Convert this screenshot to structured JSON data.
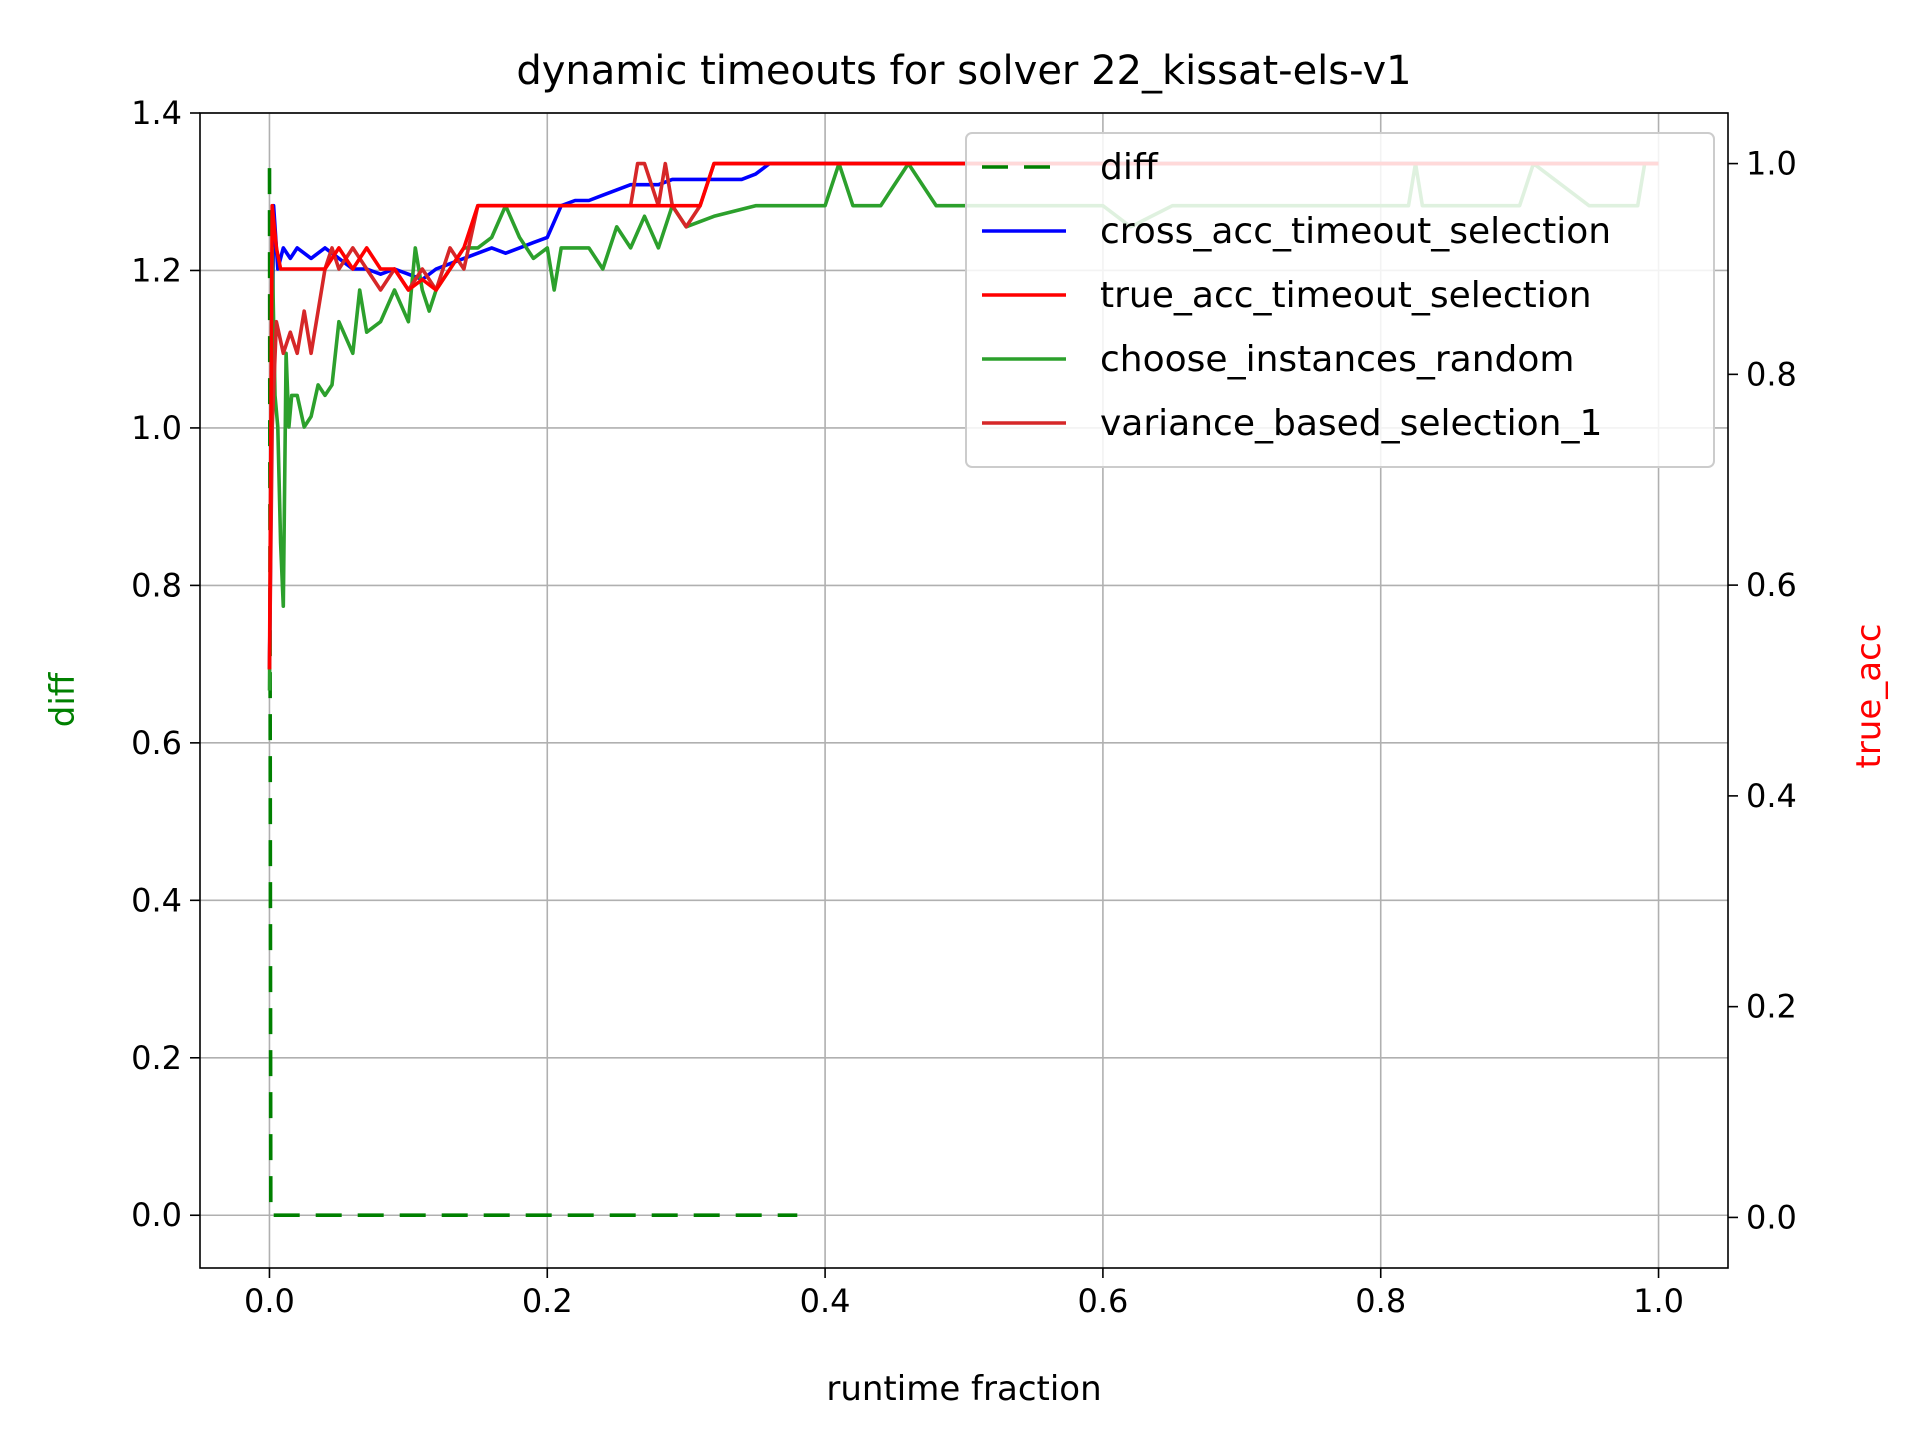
{
  "chart_data": {
    "type": "line",
    "title": "dynamic timeouts for solver 22_kissat-els-v1",
    "xlabel": "runtime fraction",
    "ylabel_left": "diff",
    "ylabel_right": "true_acc",
    "xlim": [
      -0.05,
      1.05
    ],
    "ylim_left": [
      -0.067,
      1.4
    ],
    "ylim_right": [
      -0.048,
      1.048
    ],
    "x_ticks": [
      "0.0",
      "0.2",
      "0.4",
      "0.6",
      "0.8",
      "1.0"
    ],
    "y_ticks_left": [
      "0.0",
      "0.2",
      "0.4",
      "0.6",
      "0.8",
      "1.0",
      "1.2",
      "1.4"
    ],
    "y_ticks_right": [
      "0.0",
      "0.2",
      "0.4",
      "0.6",
      "0.8",
      "1.0"
    ],
    "grid": true,
    "legend_position": "top-right",
    "colors": {
      "axis_label_left": "#008000",
      "axis_label_right": "#ff0000"
    },
    "series": [
      {
        "name": "diff",
        "axis": "left",
        "color": "#008000",
        "style": "dashed",
        "x": [
          0.0,
          0.001,
          0.003,
          0.05,
          0.1,
          0.15,
          0.2,
          0.25,
          0.3,
          0.33,
          0.36,
          0.38
        ],
        "values": [
          1.33,
          0.0,
          0.0,
          0.0,
          0.0,
          0.0,
          0.0,
          0.0,
          0.0,
          0.0,
          0.0,
          0.0
        ]
      },
      {
        "name": "cross_acc_timeout_selection",
        "axis": "right",
        "color": "#0000ff",
        "style": "solid",
        "x": [
          0.0,
          0.003,
          0.006,
          0.01,
          0.015,
          0.02,
          0.03,
          0.04,
          0.05,
          0.06,
          0.07,
          0.08,
          0.09,
          0.1,
          0.11,
          0.12,
          0.13,
          0.14,
          0.15,
          0.16,
          0.17,
          0.18,
          0.19,
          0.2,
          0.21,
          0.22,
          0.23,
          0.24,
          0.25,
          0.26,
          0.27,
          0.28,
          0.29,
          0.3,
          0.31,
          0.32,
          0.33,
          0.34,
          0.35,
          0.36,
          0.37,
          0.38,
          0.39,
          0.4,
          0.45,
          0.5,
          0.6,
          0.7,
          0.8,
          0.9,
          1.0
        ],
        "values": [
          0.52,
          0.96,
          0.9,
          0.92,
          0.91,
          0.92,
          0.91,
          0.92,
          0.91,
          0.9,
          0.9,
          0.895,
          0.9,
          0.895,
          0.89,
          0.9,
          0.905,
          0.91,
          0.915,
          0.92,
          0.915,
          0.92,
          0.925,
          0.93,
          0.96,
          0.965,
          0.965,
          0.97,
          0.975,
          0.98,
          0.98,
          0.98,
          0.985,
          0.985,
          0.985,
          0.985,
          0.985,
          0.985,
          0.99,
          1.0,
          1.0,
          1.0,
          1.0,
          1.0,
          1.0,
          1.0,
          1.0,
          1.0,
          1.0,
          1.0,
          1.0
        ]
      },
      {
        "name": "true_acc_timeout_selection",
        "axis": "right",
        "color": "#ff0000",
        "style": "solid",
        "x": [
          0.0,
          0.002,
          0.005,
          0.008,
          0.012,
          0.02,
          0.03,
          0.04,
          0.05,
          0.06,
          0.07,
          0.08,
          0.09,
          0.1,
          0.11,
          0.12,
          0.13,
          0.14,
          0.15,
          0.16,
          0.18,
          0.2,
          0.22,
          0.24,
          0.26,
          0.27,
          0.28,
          0.29,
          0.3,
          0.31,
          0.32,
          0.33,
          0.34,
          0.36,
          0.4,
          0.5,
          0.6,
          0.7,
          0.8,
          0.9,
          1.0
        ],
        "values": [
          0.52,
          0.96,
          0.92,
          0.9,
          0.9,
          0.9,
          0.9,
          0.9,
          0.92,
          0.9,
          0.92,
          0.9,
          0.9,
          0.88,
          0.89,
          0.88,
          0.9,
          0.92,
          0.96,
          0.96,
          0.96,
          0.96,
          0.96,
          0.96,
          0.96,
          0.96,
          0.96,
          0.96,
          0.96,
          0.96,
          1.0,
          1.0,
          1.0,
          1.0,
          1.0,
          1.0,
          1.0,
          1.0,
          1.0,
          1.0,
          1.0
        ]
      },
      {
        "name": "choose_instances_random",
        "axis": "right",
        "color": "#2ca02c",
        "style": "solid",
        "x": [
          0.0,
          0.002,
          0.004,
          0.006,
          0.008,
          0.01,
          0.012,
          0.014,
          0.016,
          0.02,
          0.025,
          0.03,
          0.035,
          0.04,
          0.045,
          0.05,
          0.06,
          0.065,
          0.07,
          0.08,
          0.09,
          0.1,
          0.105,
          0.11,
          0.115,
          0.12,
          0.13,
          0.14,
          0.15,
          0.16,
          0.17,
          0.18,
          0.19,
          0.2,
          0.205,
          0.21,
          0.22,
          0.23,
          0.24,
          0.25,
          0.26,
          0.27,
          0.28,
          0.29,
          0.3,
          0.32,
          0.35,
          0.36,
          0.37,
          0.38,
          0.4,
          0.41,
          0.42,
          0.44,
          0.46,
          0.48,
          0.5,
          0.55,
          0.6,
          0.62,
          0.65,
          0.7,
          0.75,
          0.8,
          0.82,
          0.825,
          0.83,
          0.9,
          0.91,
          0.95,
          0.98,
          0.985,
          0.99,
          1.0
        ],
        "values": [
          0.5,
          0.92,
          0.78,
          0.75,
          0.64,
          0.58,
          0.82,
          0.75,
          0.78,
          0.78,
          0.75,
          0.76,
          0.79,
          0.78,
          0.79,
          0.85,
          0.82,
          0.88,
          0.84,
          0.85,
          0.88,
          0.85,
          0.92,
          0.88,
          0.86,
          0.88,
          0.9,
          0.92,
          0.92,
          0.93,
          0.96,
          0.93,
          0.91,
          0.92,
          0.88,
          0.92,
          0.92,
          0.92,
          0.9,
          0.94,
          0.92,
          0.95,
          0.92,
          0.96,
          0.94,
          0.95,
          0.96,
          0.96,
          0.96,
          0.96,
          0.96,
          1.0,
          0.96,
          0.96,
          1.0,
          0.96,
          0.96,
          0.96,
          0.96,
          0.94,
          0.96,
          0.96,
          0.96,
          0.96,
          0.96,
          1.0,
          0.96,
          0.96,
          1.0,
          0.96,
          0.96,
          0.96,
          1.0,
          1.0
        ]
      },
      {
        "name": "variance_based_selection_1",
        "axis": "right",
        "color": "#d62728",
        "style": "solid",
        "x": [
          0.0,
          0.002,
          0.005,
          0.01,
          0.015,
          0.02,
          0.025,
          0.03,
          0.035,
          0.04,
          0.045,
          0.05,
          0.06,
          0.07,
          0.08,
          0.09,
          0.1,
          0.11,
          0.12,
          0.13,
          0.14,
          0.15,
          0.16,
          0.18,
          0.2,
          0.22,
          0.24,
          0.26,
          0.265,
          0.27,
          0.28,
          0.285,
          0.29,
          0.3,
          0.31,
          0.32,
          0.33,
          0.34,
          0.36,
          0.4,
          0.5,
          0.6,
          0.7,
          0.8,
          0.9,
          1.0
        ],
        "values": [
          0.52,
          0.75,
          0.85,
          0.82,
          0.84,
          0.82,
          0.86,
          0.82,
          0.86,
          0.9,
          0.92,
          0.9,
          0.92,
          0.9,
          0.88,
          0.9,
          0.88,
          0.9,
          0.88,
          0.92,
          0.9,
          0.96,
          0.96,
          0.96,
          0.96,
          0.96,
          0.96,
          0.96,
          1.0,
          1.0,
          0.96,
          1.0,
          0.96,
          0.94,
          0.96,
          1.0,
          1.0,
          1.0,
          1.0,
          1.0,
          1.0,
          1.0,
          1.0,
          1.0,
          1.0,
          1.0
        ]
      }
    ]
  }
}
